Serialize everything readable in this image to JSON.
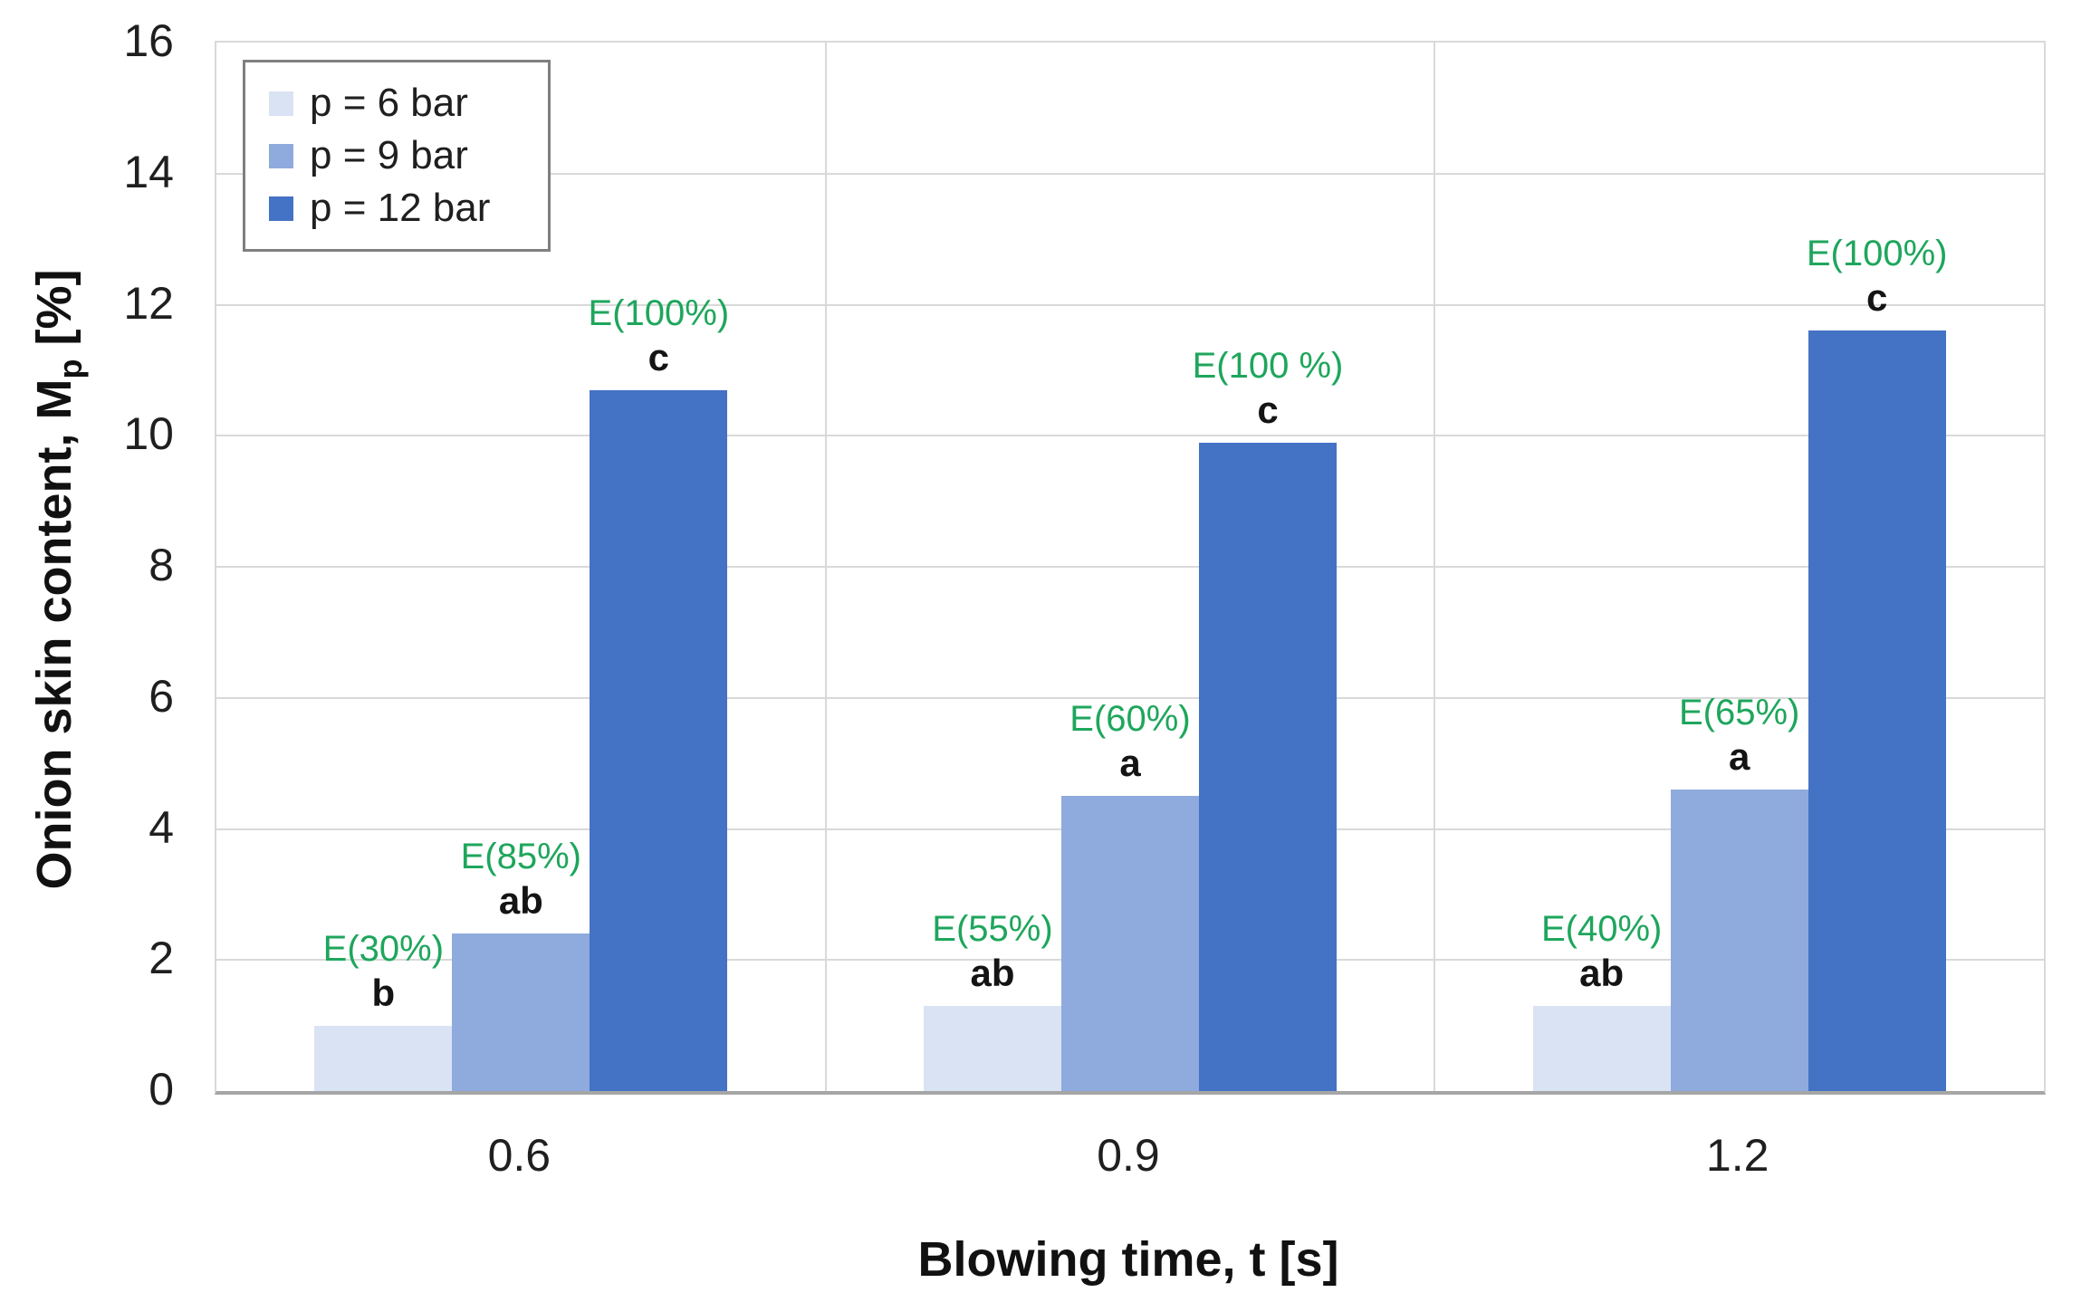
{
  "chart_data": {
    "type": "bar",
    "title": "",
    "categories": [
      "0.6",
      "0.9",
      "1.2"
    ],
    "xlabel": "Blowing time, t [s]",
    "ylabel": "Onion skin content, Mp [%]",
    "ylabel_parts": {
      "prefix": "Onion skin content, M",
      "sub": "p",
      "suffix": " [%]"
    },
    "ylim": [
      0,
      16
    ],
    "yticks": [
      0,
      2,
      4,
      6,
      8,
      10,
      12,
      14,
      16
    ],
    "grid": "horizontal",
    "legend_position": "top-left-inside",
    "series": [
      {
        "name": "p = 6 bar",
        "color": "#dae3f3",
        "values": [
          1.0,
          1.3,
          1.3
        ],
        "efficiency_labels": [
          "E(30%)",
          "E(55%)",
          "E(40%)"
        ],
        "significance_letters": [
          "b",
          "ab",
          "ab"
        ]
      },
      {
        "name": "p = 9 bar",
        "color": "#8faadc",
        "values": [
          2.4,
          4.5,
          4.6
        ],
        "efficiency_labels": [
          "E(85%)",
          "E(60%)",
          "E(65%)"
        ],
        "significance_letters": [
          "ab",
          "a",
          "a"
        ]
      },
      {
        "name": "p = 12 bar",
        "color": "#4472c4",
        "values": [
          10.7,
          9.9,
          11.6
        ],
        "efficiency_labels": [
          "E(100%)",
          "E(100 %)",
          "E(100%)"
        ],
        "significance_letters": [
          "c",
          "c",
          "c"
        ]
      }
    ],
    "annotation_color": "#1ea65c",
    "gridline_color": "#d9d9d9",
    "axis_line_color": "#a6a6a6",
    "text_color": "#1f1f1f"
  }
}
